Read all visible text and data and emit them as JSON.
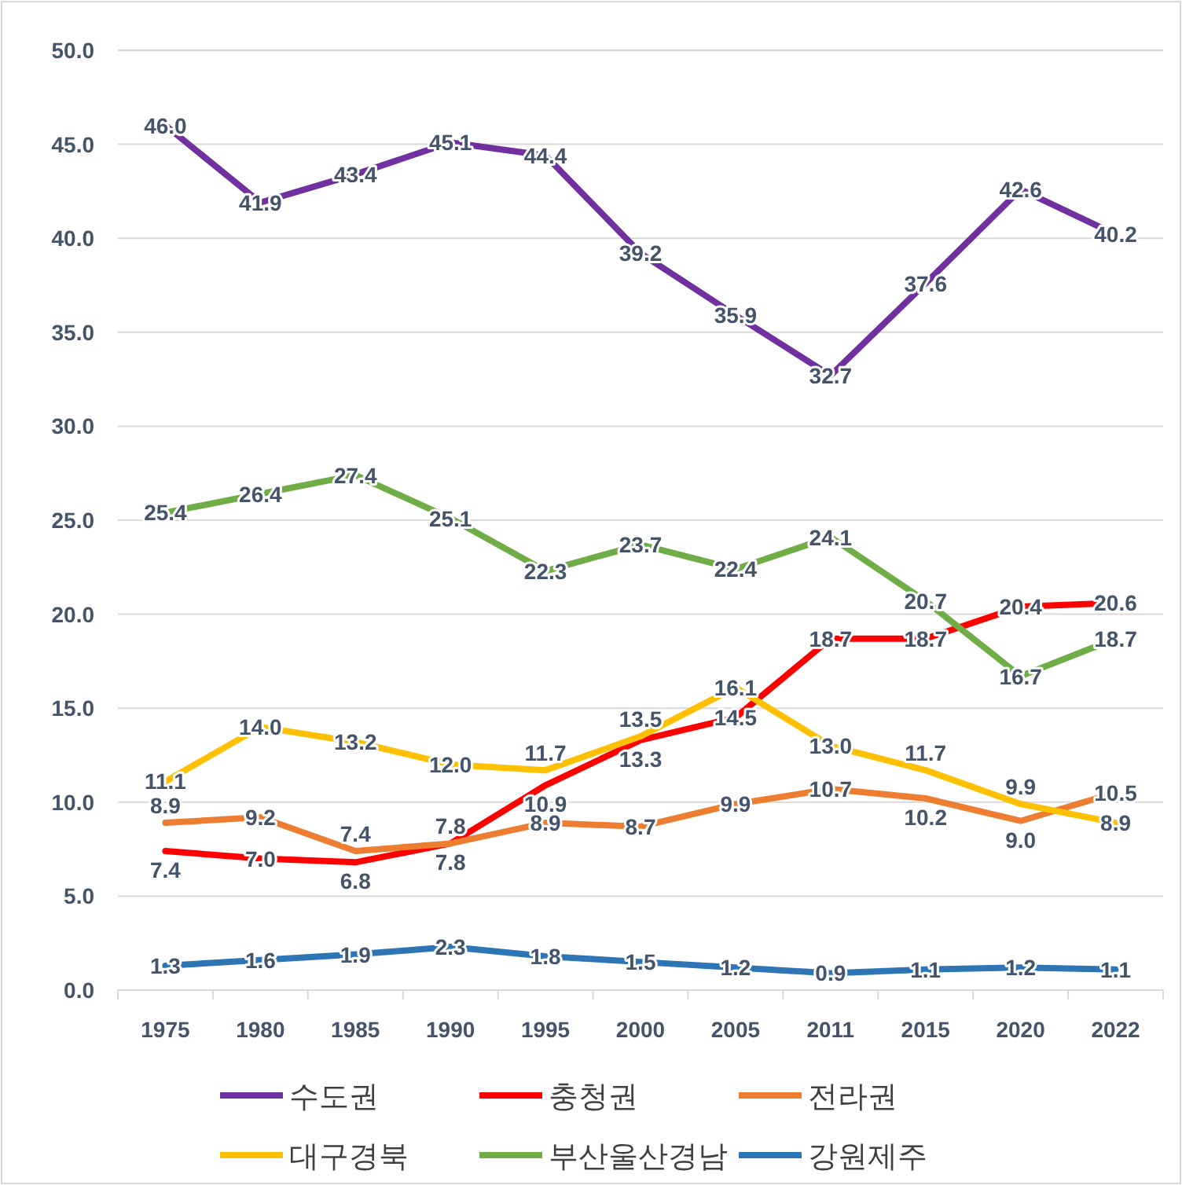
{
  "chart_data": {
    "type": "line",
    "categories": [
      "1975",
      "1980",
      "1985",
      "1990",
      "1995",
      "2000",
      "2005",
      "2011",
      "2015",
      "2020",
      "2022"
    ],
    "series": [
      {
        "name": "수도권",
        "color": "#7030a0",
        "values": [
          46.0,
          41.9,
          43.4,
          45.1,
          44.4,
          39.2,
          35.9,
          32.7,
          37.6,
          42.6,
          40.2
        ],
        "value_labels": [
          "46.0",
          "41.9",
          "43.4",
          "45.1",
          "44.4",
          "39.2",
          "35.9",
          "32.7",
          "37.6",
          "42.6",
          "40.2"
        ]
      },
      {
        "name": "충청권",
        "color": "#ff0000",
        "values": [
          7.4,
          7.0,
          6.8,
          7.8,
          10.9,
          13.3,
          14.5,
          18.7,
          18.7,
          20.4,
          20.6
        ],
        "value_labels": [
          "7.4",
          "7.0",
          "6.8",
          "7.8",
          "10.9",
          "13.3",
          "14.5",
          "18.7",
          "18.7",
          "20.4",
          "20.6"
        ]
      },
      {
        "name": "전라권",
        "color": "#ed7d31",
        "values": [
          8.9,
          9.2,
          7.4,
          7.8,
          8.9,
          8.7,
          9.9,
          10.7,
          10.2,
          9.0,
          10.5
        ],
        "value_labels": [
          "8.9",
          "9.2",
          "7.4",
          "7.8",
          "8.9",
          "8.7",
          "9.9",
          "10.7",
          "10.2",
          "9.0",
          "10.5"
        ]
      },
      {
        "name": "대구경북",
        "color": "#ffc000",
        "values": [
          11.1,
          14.0,
          13.2,
          12.0,
          11.7,
          13.5,
          16.1,
          13.0,
          11.7,
          9.9,
          8.9
        ],
        "value_labels": [
          "11.1",
          "14.0",
          "13.2",
          "12.0",
          "11.7",
          "13.5",
          "16.1",
          "13.0",
          "11.7",
          "9.9",
          "8.9"
        ]
      },
      {
        "name": "부산울산경남",
        "color": "#70ad47",
        "values": [
          25.4,
          26.4,
          27.4,
          25.1,
          22.3,
          23.7,
          22.4,
          24.1,
          20.7,
          16.7,
          18.7
        ],
        "value_labels": [
          "25.4",
          "26.4",
          "27.4",
          "25.1",
          "22.3",
          "23.7",
          "22.4",
          "24.1",
          "20.7",
          "16.7",
          "18.7"
        ]
      },
      {
        "name": "강원제주",
        "color": "#2e75b6",
        "values": [
          1.3,
          1.6,
          1.9,
          2.3,
          1.8,
          1.5,
          1.2,
          0.9,
          1.1,
          1.2,
          1.1
        ],
        "value_labels": [
          "1.3",
          "1.6",
          "1.9",
          "2.3",
          "1.8",
          "1.5",
          "1.2",
          "0.9",
          "1.1",
          "1.2",
          "1.1"
        ]
      }
    ],
    "ylim": [
      0,
      50
    ],
    "yticks": [
      {
        "value": 0,
        "label": "0.0"
      },
      {
        "value": 5,
        "label": "5.0"
      },
      {
        "value": 10,
        "label": "10.0"
      },
      {
        "value": 15,
        "label": "15.0"
      },
      {
        "value": 20,
        "label": "20.0"
      },
      {
        "value": 25,
        "label": "25.0"
      },
      {
        "value": 30,
        "label": "30.0"
      },
      {
        "value": 35,
        "label": "35.0"
      },
      {
        "value": 40,
        "label": "40.0"
      },
      {
        "value": 45,
        "label": "45.0"
      },
      {
        "value": 50,
        "label": "50.0"
      }
    ],
    "grid": "y",
    "legend": "bottom",
    "marker": "none",
    "line_style": "solid"
  }
}
